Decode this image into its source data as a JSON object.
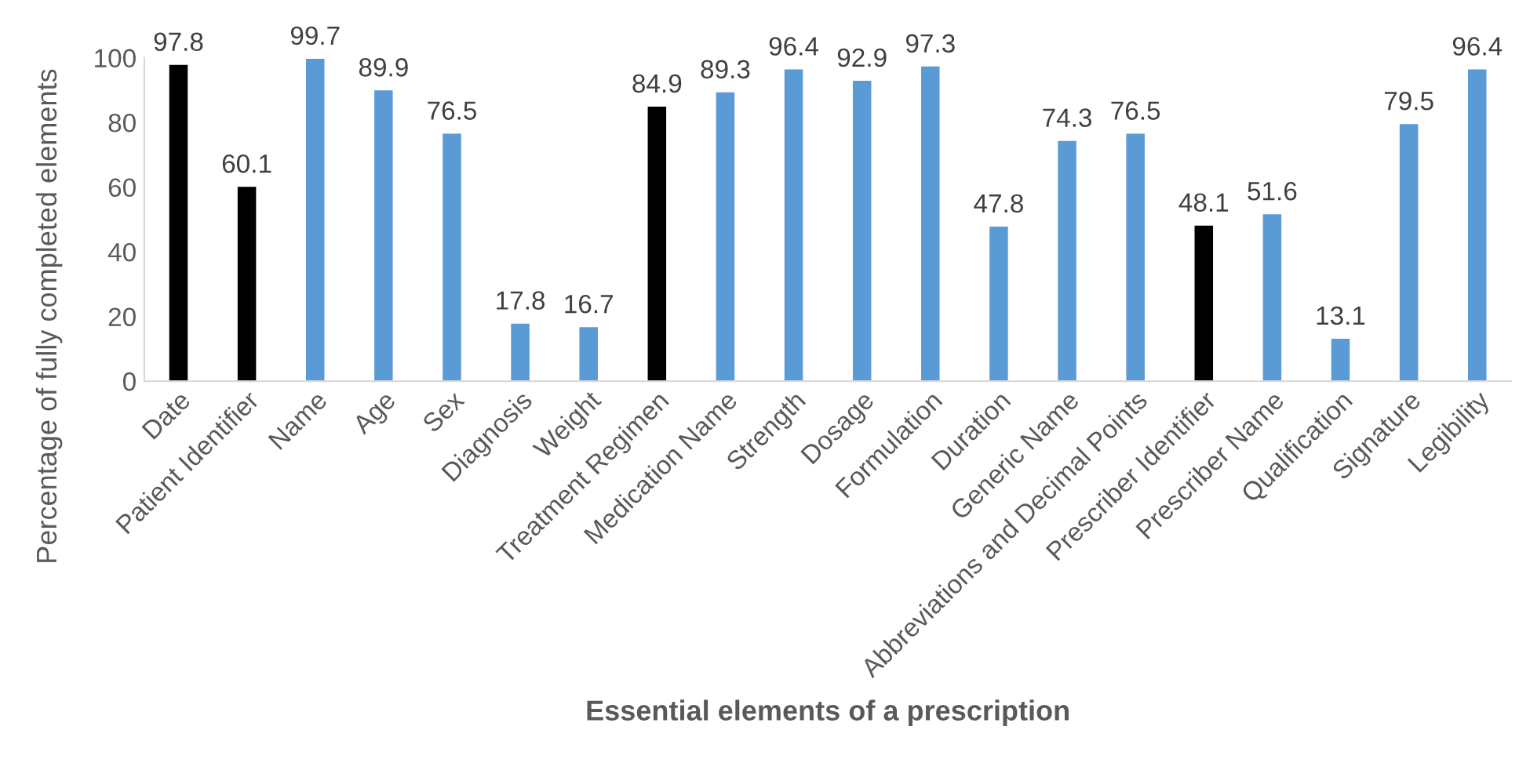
{
  "chart_data": {
    "type": "bar",
    "xlabel": "Essential elements of a prescription",
    "ylabel": "Percentage of fully completed elements",
    "categories": [
      "Date",
      "Patient Identifier",
      "Name",
      "Age",
      "Sex",
      "Diagnosis",
      "Weight",
      "Treatment Regimen",
      "Medication Name",
      "Strength",
      "Dosage",
      "Formulation",
      "Duration",
      "Generic Name",
      "Abbreviations and Decimal Points",
      "Prescriber Identifier",
      "Prescriber Name",
      "Qualification",
      "Signature",
      "Legibility"
    ],
    "values": [
      97.8,
      60.1,
      99.7,
      89.9,
      76.5,
      17.8,
      16.7,
      84.9,
      89.3,
      96.4,
      92.9,
      97.3,
      47.8,
      74.3,
      76.5,
      48.1,
      51.6,
      13.1,
      79.5,
      96.4
    ],
    "colors": [
      "#000000",
      "#000000",
      "#5b9bd5",
      "#5b9bd5",
      "#5b9bd5",
      "#5b9bd5",
      "#5b9bd5",
      "#000000",
      "#5b9bd5",
      "#5b9bd5",
      "#5b9bd5",
      "#5b9bd5",
      "#5b9bd5",
      "#5b9bd5",
      "#5b9bd5",
      "#000000",
      "#5b9bd5",
      "#5b9bd5",
      "#5b9bd5",
      "#5b9bd5"
    ],
    "ylim": [
      0,
      100
    ],
    "yticks": [
      0,
      20,
      40,
      60,
      80,
      100
    ],
    "data_labels": true,
    "grid": false,
    "legend": false
  }
}
